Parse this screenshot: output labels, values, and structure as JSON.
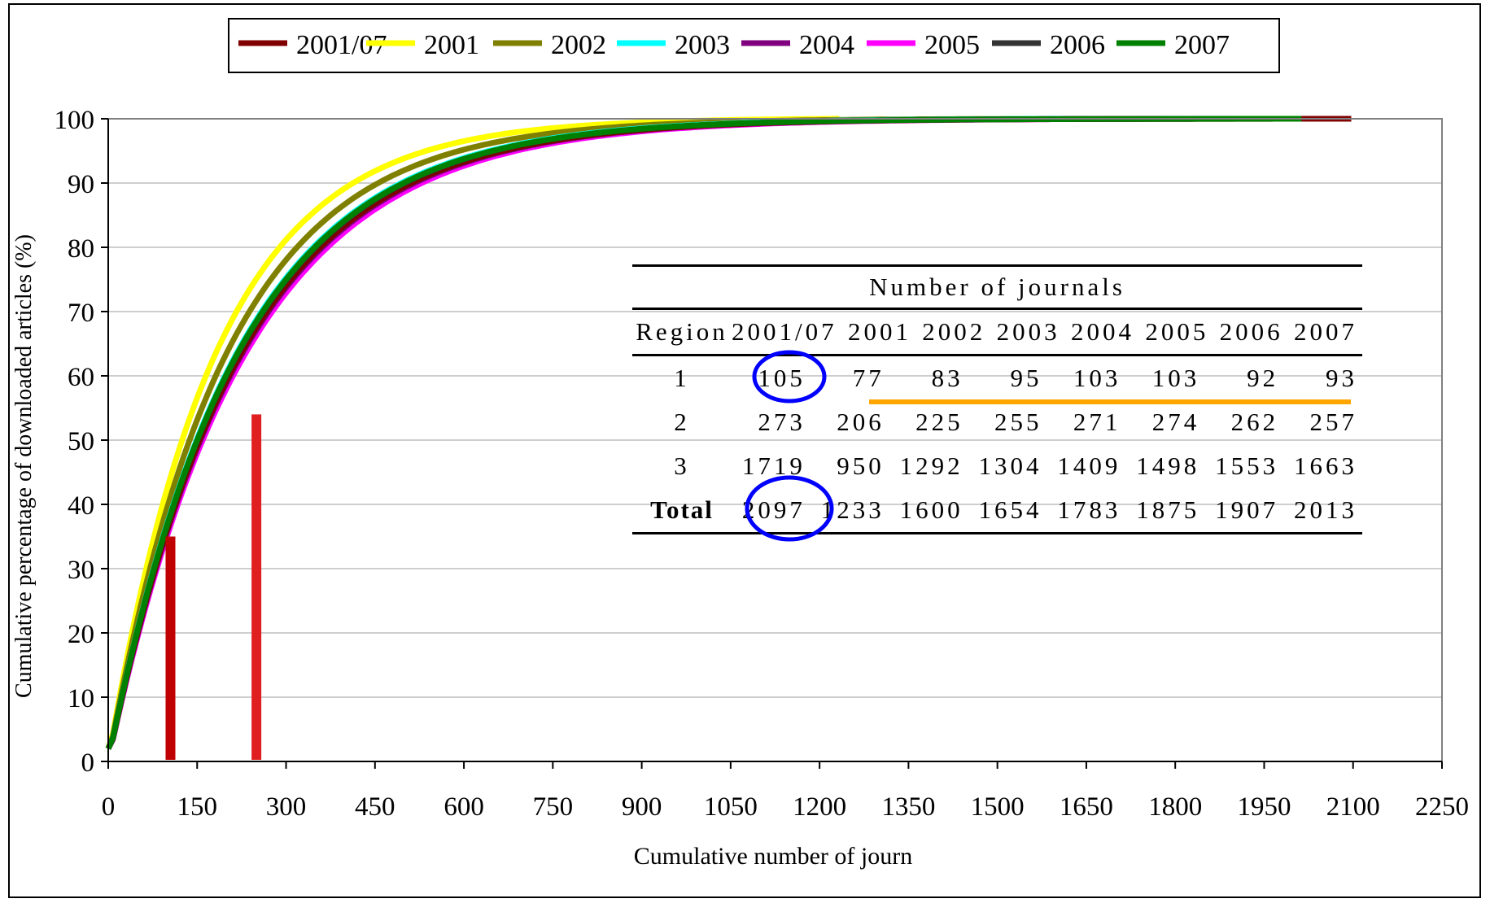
{
  "chart_data": {
    "type": "line",
    "xlabel": "Cumulative number of journ",
    "ylabel": "Cumulative percentage of downloaded articles (%)",
    "xlim": [
      0,
      2250
    ],
    "ylim": [
      0,
      100
    ],
    "x_ticks": [
      "0",
      "150",
      "300",
      "450",
      "600",
      "750",
      "900",
      "1050",
      "1200",
      "1350",
      "1500",
      "1650",
      "1800",
      "1950",
      "2100",
      "2250"
    ],
    "y_ticks": [
      "0",
      "10",
      "20",
      "30",
      "40",
      "50",
      "60",
      "70",
      "80",
      "90",
      "100"
    ],
    "grid": "horizontal",
    "legend_position": "top",
    "series": [
      {
        "name": "2001/07",
        "color": "#800000",
        "total": 2097,
        "k": 0.0045
      },
      {
        "name": "2001",
        "color": "#ffff00",
        "total": 1233,
        "k": 0.00555
      },
      {
        "name": "2002",
        "color": "#808000",
        "total": 1600,
        "k": 0.00505
      },
      {
        "name": "2003",
        "color": "#00ffff",
        "total": 1654,
        "k": 0.00465
      },
      {
        "name": "2004",
        "color": "#800080",
        "total": 1783,
        "k": 0.00445
      },
      {
        "name": "2005",
        "color": "#ff00ff",
        "total": 1875,
        "k": 0.00435
      },
      {
        "name": "2006",
        "color": "#333333",
        "total": 1907,
        "k": 0.0046
      },
      {
        "name": "2007",
        "color": "#008000",
        "total": 2013,
        "k": 0.00462
      }
    ],
    "markers": [
      {
        "x": 105,
        "y": 35,
        "color": "#c00000"
      },
      {
        "x": 250,
        "y": 54,
        "color": "#e02020"
      }
    ]
  },
  "table": {
    "group_header": "Number of journals",
    "header": [
      "Region",
      "2001/07",
      "2001",
      "2002",
      "2003",
      "2004",
      "2005",
      "2006",
      "2007"
    ],
    "rows": [
      {
        "region": "1",
        "values": [
          "105",
          "77",
          "83",
          "95",
          "103",
          "103",
          "92",
          "93"
        ]
      },
      {
        "region": "2",
        "values": [
          "273",
          "206",
          "225",
          "255",
          "271",
          "274",
          "262",
          "257"
        ]
      },
      {
        "region": "3",
        "values": [
          "1719",
          "950",
          "1292",
          "1304",
          "1409",
          "1498",
          "1553",
          "1663"
        ]
      }
    ],
    "total": {
      "label": "Total",
      "values": [
        "2097",
        "1233",
        "1600",
        "1654",
        "1783",
        "1875",
        "1907",
        "2013"
      ]
    },
    "highlight_circle_color": "#0000ff",
    "underline_color": "#ffa500"
  }
}
